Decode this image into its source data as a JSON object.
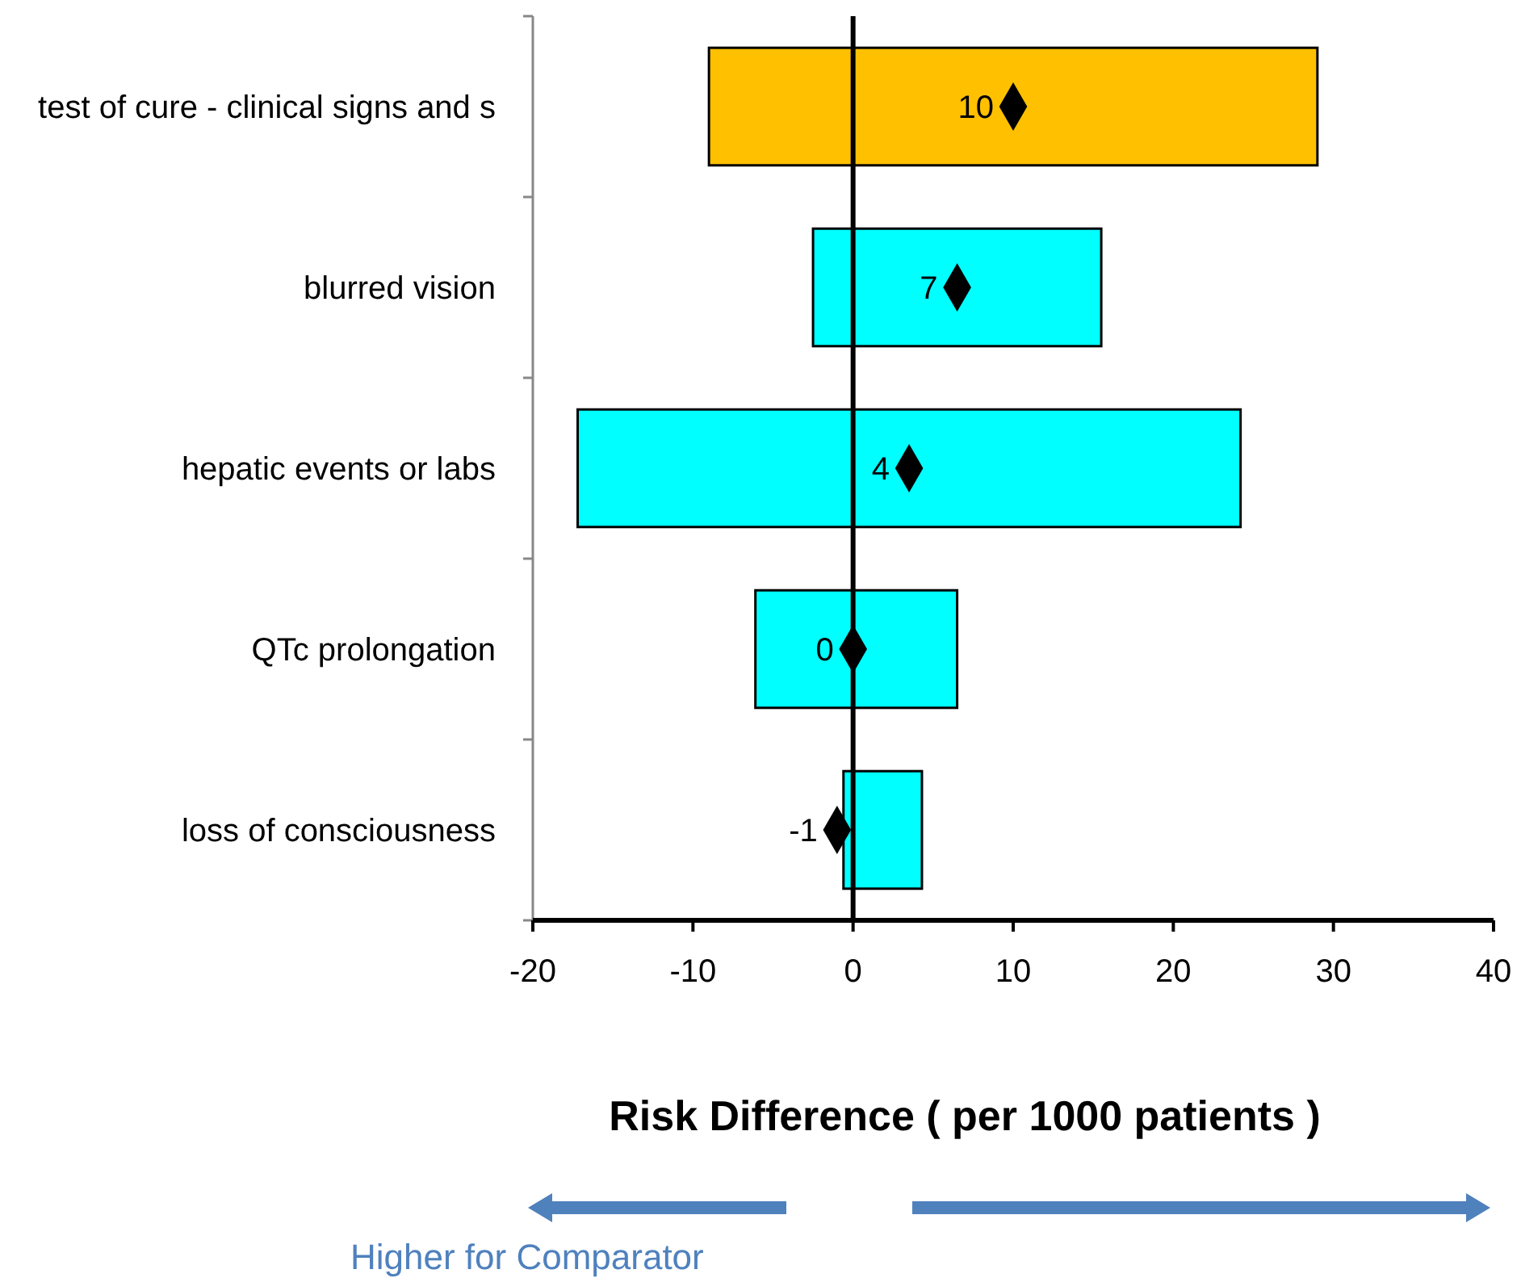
{
  "chart_data": {
    "type": "bar",
    "orientation": "horizontal",
    "xlabel": "Risk Difference ( per 1000 patients )",
    "categories": [
      "test of cure - clinical signs and s",
      "blurred vision",
      "hepatic events or labs",
      "QTc prolongation",
      "loss of consciousness"
    ],
    "xlim": [
      -20,
      40
    ],
    "xticks": [
      -20,
      -10,
      0,
      10,
      20,
      30,
      40
    ],
    "grid": false,
    "series": [
      {
        "base": [
          -9,
          -2.5,
          -17.2,
          -6.1,
          -0.6
        ],
        "values": [
          38,
          18,
          41.4,
          12.6,
          4.9
        ],
        "colors": [
          "#ffc000",
          "#00ffff",
          "#00ffff",
          "#00ffff",
          "#00ffff"
        ]
      },
      {
        "type": "scatter",
        "marker": "diamond",
        "color": "#000000",
        "values": [
          10,
          6.5,
          3.5,
          0,
          -1
        ],
        "value_labels": [
          "10",
          "7",
          "4",
          "0",
          "-1"
        ]
      }
    ],
    "ref_lines": [
      {
        "axis": "x",
        "value": 0,
        "color": "#000000"
      }
    ],
    "annotations": [
      "Higher for Comparator"
    ]
  }
}
